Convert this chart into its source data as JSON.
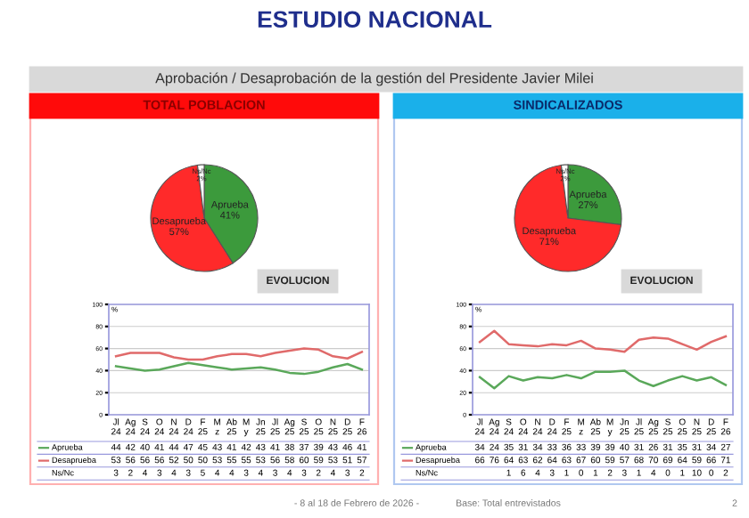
{
  "chart_data": [
    {
      "type": "other",
      "title": "ESTUDIO NACIONAL",
      "subtitle": "Aprobación / Desaprobación de la gestión del Presidente Javier Milei",
      "annotations": [
        "- 8 al 18 de Febrero de 2026 -",
        "Base: Total entrevistados",
        "2"
      ]
    },
    {
      "type": "pie",
      "title": "TOTAL POBLACION",
      "categories": [
        "Aprueba",
        "Desaprueba",
        "Ns/Nc"
      ],
      "values": [
        41,
        57,
        2
      ],
      "value_labels": [
        "41%",
        "57%",
        "2%"
      ],
      "colors": [
        "#3c9a3c",
        "#ff2a2a",
        "#ffffff"
      ]
    },
    {
      "type": "line",
      "title": "EVOLUCION",
      "ylabel": "%",
      "categories": [
        "Jl 24",
        "Ag 24",
        "S 24",
        "O 24",
        "N 24",
        "D 24",
        "F 25",
        "M z",
        "Ab 25",
        "M y",
        "Jn 25",
        "Jl 25",
        "Ag 25",
        "S 25",
        "O 25",
        "N 25",
        "D 25",
        "F 26"
      ],
      "ylim": [
        0,
        100
      ],
      "yticks": [
        0,
        20,
        40,
        60,
        80,
        100
      ],
      "grid": "y",
      "data_labels": true,
      "line_style": "solid",
      "legend": "bottom left",
      "series": [
        {
          "name": "Aprueba",
          "color": "#5aa85a",
          "values": [
            44,
            42,
            40,
            41,
            44,
            47,
            45,
            43,
            41,
            42,
            43,
            41,
            38,
            37,
            39,
            43,
            46,
            41
          ]
        },
        {
          "name": "Desaprueba",
          "color": "#e06a6a",
          "values": [
            53,
            56,
            56,
            56,
            52,
            50,
            50,
            53,
            55,
            55,
            53,
            56,
            58,
            60,
            59,
            53,
            51,
            57
          ]
        }
      ]
    },
    {
      "type": "other",
      "data_labels": true,
      "series": [
        {
          "name": "Ns/Nc",
          "values": [
            3,
            2,
            4,
            3,
            4,
            3,
            5,
            4,
            4,
            3,
            4,
            3,
            4,
            3,
            2,
            4,
            3,
            2
          ]
        }
      ]
    },
    {
      "type": "pie",
      "title": "SINDICALIZADOS",
      "categories": [
        "Aprueba",
        "Desaprueba",
        "Ns/Nc"
      ],
      "values": [
        27,
        71,
        2
      ],
      "value_labels": [
        "27%",
        "71%",
        "2%"
      ],
      "colors": [
        "#3c9a3c",
        "#ff2a2a",
        "#ffffff"
      ]
    },
    {
      "type": "line",
      "title": "EVOLUCION",
      "ylabel": "%",
      "categories": [
        "Jl 24",
        "Ag 24",
        "S 24",
        "O 24",
        "N 24",
        "D 24",
        "F 25",
        "M z",
        "Ab 25",
        "M y",
        "Jn 25",
        "Jl 25",
        "Ag 25",
        "S 25",
        "O 25",
        "N 25",
        "D 25",
        "F 26"
      ],
      "ylim": [
        0,
        100
      ],
      "yticks": [
        0,
        20,
        40,
        60,
        80,
        100
      ],
      "grid": "y",
      "data_labels": true,
      "line_style": "solid",
      "legend": "bottom left",
      "series": [
        {
          "name": "Aprueba",
          "color": "#5aa85a",
          "values": [
            34,
            24,
            35,
            31,
            34,
            33,
            36,
            33,
            39,
            39,
            40,
            31,
            26,
            31,
            35,
            31,
            34,
            27
          ]
        },
        {
          "name": "Desaprueba",
          "color": "#e06a6a",
          "values": [
            66,
            76,
            64,
            63,
            62,
            64,
            63,
            67,
            60,
            59,
            57,
            68,
            70,
            69,
            64,
            59,
            66,
            71
          ]
        }
      ]
    },
    {
      "type": "other",
      "data_labels": true,
      "series": [
        {
          "name": "Ns/Nc",
          "values": [
            null,
            null,
            1,
            6,
            4,
            3,
            1,
            0,
            1,
            2,
            3,
            1,
            4,
            0,
            1,
            10,
            0,
            2
          ]
        }
      ]
    }
  ]
}
